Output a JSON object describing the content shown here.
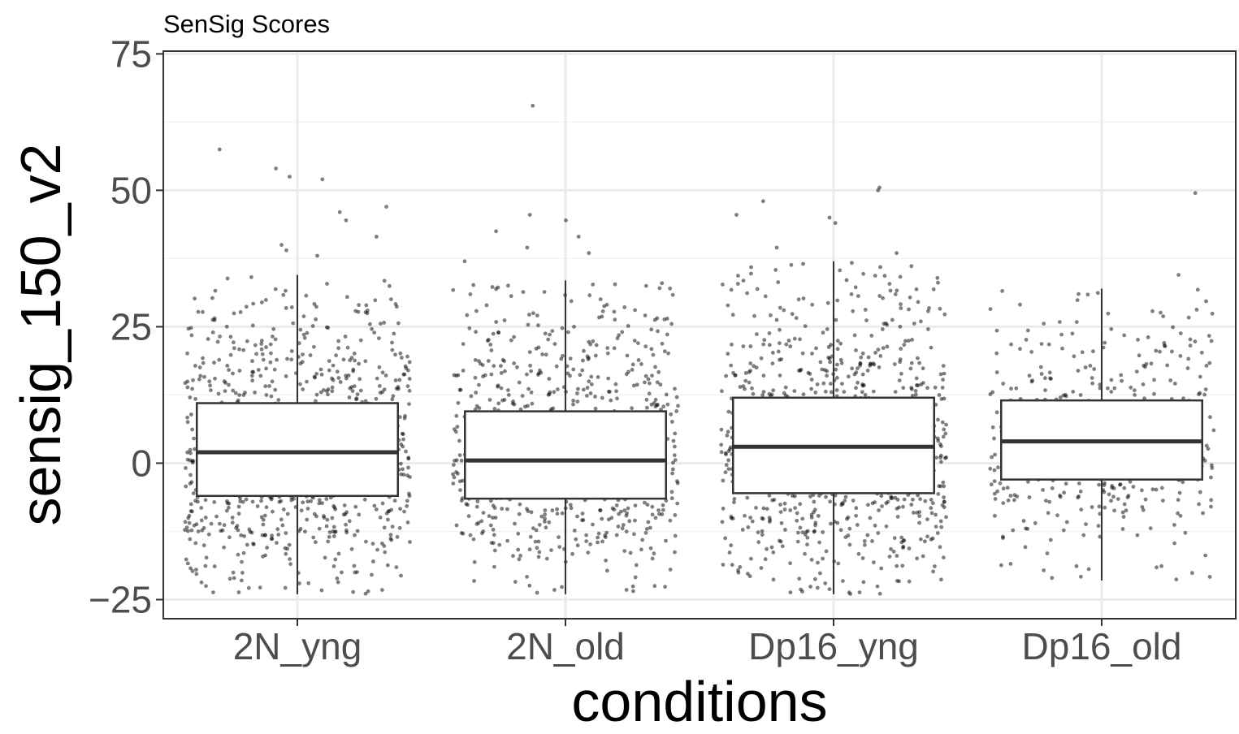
{
  "chart_data": {
    "type": "box",
    "title": "SenSig Scores",
    "xlabel": "conditions",
    "ylabel": "sensig_150_v2",
    "ylim": [
      -28.5,
      75.5
    ],
    "yticks": [
      -25,
      0,
      25,
      50,
      75
    ],
    "ytick_labels": [
      "−25",
      "0",
      "25",
      "50",
      "75"
    ],
    "grid": true,
    "categories": [
      "2N_yng",
      "2N_old",
      "Dp16_yng",
      "Dp16_old"
    ],
    "boxes": [
      {
        "category": "2N_yng",
        "q1": -6,
        "median": 2,
        "q3": 11,
        "whisker_low": -24,
        "whisker_high": 34.5,
        "n_points": 900,
        "outliers": [
          57.5,
          54,
          52.5,
          52,
          47,
          46,
          44.5,
          41.5,
          40,
          39,
          38
        ],
        "color": "#333333"
      },
      {
        "category": "2N_old",
        "q1": -6.5,
        "median": 0.5,
        "q3": 9.5,
        "whisker_low": -24,
        "whisker_high": 33.5,
        "n_points": 750,
        "outliers": [
          65.5,
          45.5,
          44.5,
          42.5,
          41.5,
          39.5,
          38.5,
          37
        ],
        "color": "#333333"
      },
      {
        "category": "Dp16_yng",
        "q1": -5.5,
        "median": 3,
        "q3": 12,
        "whisker_low": -24,
        "whisker_high": 37,
        "n_points": 950,
        "outliers": [
          50.5,
          50,
          48,
          45.5,
          45,
          44,
          39.5,
          38.5
        ],
        "color": "#333333"
      },
      {
        "category": "Dp16_old",
        "q1": -3,
        "median": 4,
        "q3": 11.5,
        "whisker_low": -21.5,
        "whisker_high": 32,
        "n_points": 450,
        "outliers": [
          49.5,
          34.5
        ],
        "color": "#333333"
      }
    ],
    "point_color": "#000000",
    "point_opacity": 0.5
  }
}
